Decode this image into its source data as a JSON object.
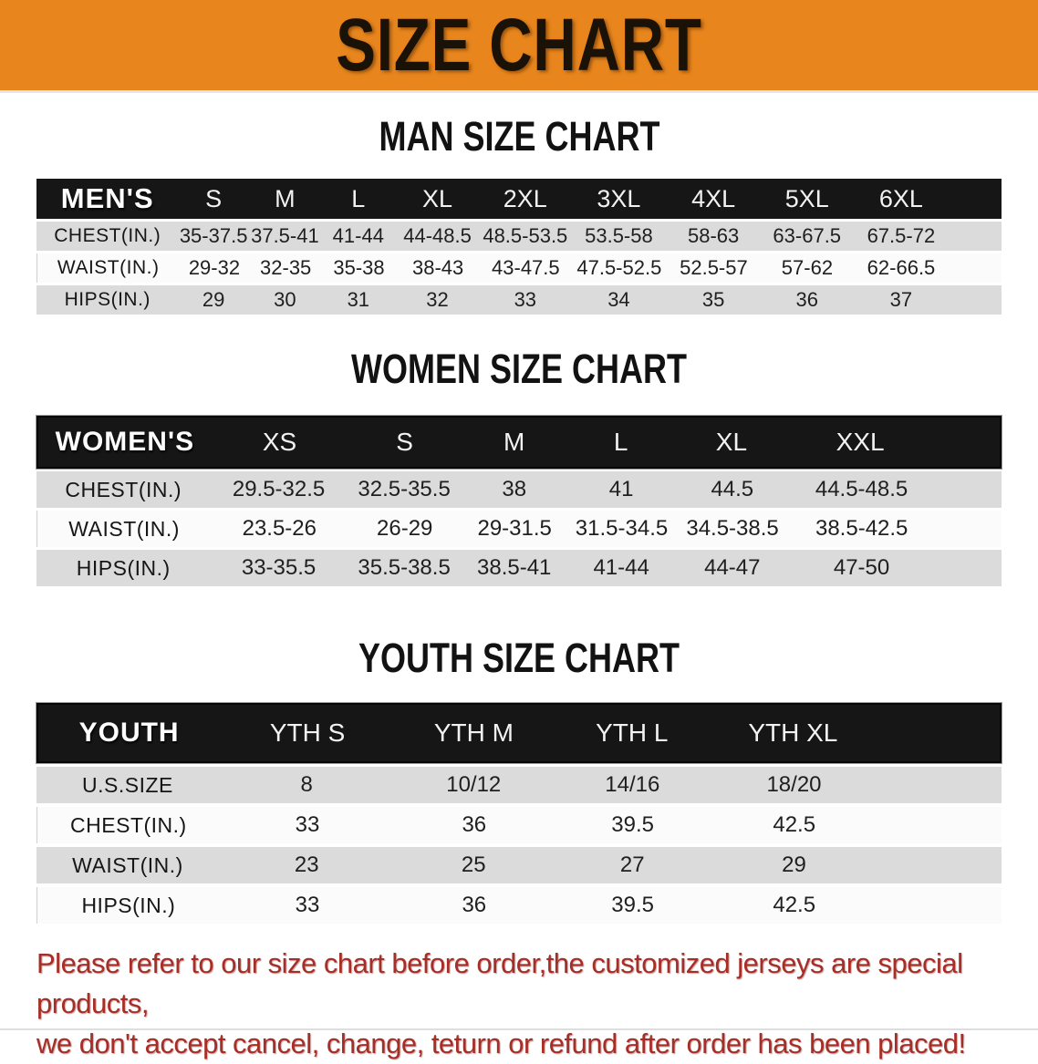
{
  "banner": {
    "title": "SIZE CHART"
  },
  "sections": [
    {
      "heading": "MAN SIZE CHART",
      "label": "MEN'S",
      "columns": [
        "S",
        "M",
        "L",
        "XL",
        "2XL",
        "3XL",
        "4XL",
        "5XL",
        "6XL"
      ],
      "rows": [
        {
          "label": "CHEST(IN.)",
          "values": [
            "35-37.5",
            "37.5-41",
            "41-44",
            "44-48.5",
            "48.5-53.5",
            "53.5-58",
            "58-63",
            "63-67.5",
            "67.5-72"
          ]
        },
        {
          "label": "WAIST(IN.)",
          "values": [
            "29-32",
            "32-35",
            "35-38",
            "38-43",
            "43-47.5",
            "47.5-52.5",
            "52.5-57",
            "57-62",
            "62-66.5"
          ]
        },
        {
          "label": "HIPS(IN.)",
          "values": [
            "29",
            "30",
            "31",
            "32",
            "33",
            "34",
            "35",
            "36",
            "37"
          ]
        }
      ]
    },
    {
      "heading": "WOMEN SIZE CHART",
      "label": "WOMEN'S",
      "columns": [
        "XS",
        "S",
        "M",
        "L",
        "XL",
        "XXL"
      ],
      "rows": [
        {
          "label": "CHEST(IN.)",
          "values": [
            "29.5-32.5",
            "32.5-35.5",
            "38",
            "41",
            "44.5",
            "44.5-48.5"
          ]
        },
        {
          "label": "WAIST(IN.)",
          "values": [
            "23.5-26",
            "26-29",
            "29-31.5",
            "31.5-34.5",
            "34.5-38.5",
            "38.5-42.5"
          ]
        },
        {
          "label": "HIPS(IN.)",
          "values": [
            "33-35.5",
            "35.5-38.5",
            "38.5-41",
            "41-44",
            "44-47",
            "47-50"
          ]
        }
      ]
    },
    {
      "heading": "YOUTH SIZE CHART",
      "label": "YOUTH",
      "columns": [
        "YTH S",
        "YTH M",
        "YTH L",
        "YTH XL"
      ],
      "rows": [
        {
          "label": "U.S.SIZE",
          "values": [
            "8",
            "10/12",
            "14/16",
            "18/20"
          ]
        },
        {
          "label": "CHEST(IN.)",
          "values": [
            "33",
            "36",
            "39.5",
            "42.5"
          ]
        },
        {
          "label": "WAIST(IN.)",
          "values": [
            "23",
            "25",
            "27",
            "29"
          ]
        },
        {
          "label": "HIPS(IN.)",
          "values": [
            "33",
            "36",
            "39.5",
            "42.5"
          ]
        }
      ]
    }
  ],
  "disclaimer": {
    "line1": "Please refer to our size chart before order,the customized jerseys are special products,",
    "line2": "we don't accept cancel, change, teturn or refund after order has been placed!"
  },
  "theme": {
    "banner_bg": "#E8861D",
    "band_bg": "#161616",
    "row_gray": "#DBDBDB",
    "row_white": "#FBFBFB",
    "disclaimer_color": "#A72E26"
  }
}
